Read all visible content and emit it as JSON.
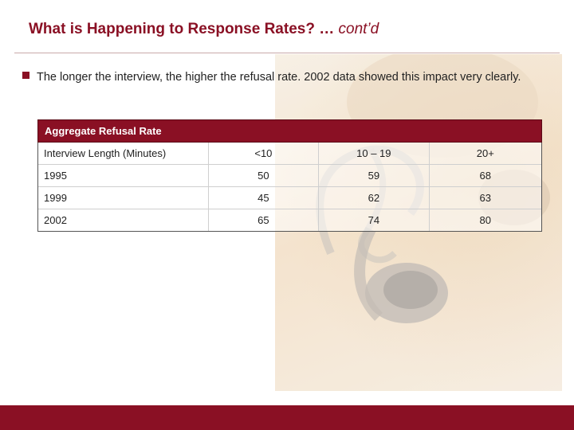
{
  "slide": {
    "title": "What is Happening to Response Rates? …",
    "title_suffix": "cont’d",
    "bullet": "The longer the interview, the higher the refusal rate.  2002 data showed this impact very clearly."
  },
  "table": {
    "caption": "Aggregate Refusal Rate",
    "header": [
      "Interview Length (Minutes)",
      "<10",
      "10 – 19",
      "20+"
    ],
    "rows": [
      [
        "1995",
        "50",
        "59",
        "68"
      ],
      [
        "1999",
        "45",
        "62",
        "63"
      ],
      [
        "2002",
        "65",
        "74",
        "80"
      ]
    ]
  },
  "colors": {
    "accent": "#8a1024",
    "text": "#222222"
  },
  "icons": [
    "bullet-square-icon",
    "telephone-handset-image"
  ]
}
